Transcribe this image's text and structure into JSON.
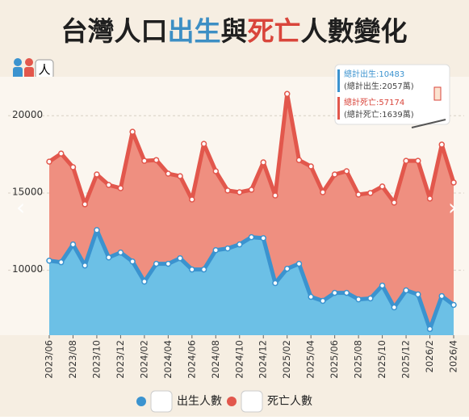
{
  "chart_data": {
    "type": "line",
    "title_parts": [
      {
        "text": "台灣人口",
        "color": "#1f1f1f"
      },
      {
        "text": "出生",
        "color": "#3d8fc4"
      },
      {
        "text": "與",
        "color": "#1f1f1f"
      },
      {
        "text": "死亡",
        "color": "#d9453b"
      },
      {
        "text": "人數變化",
        "color": "#1f1f1f"
      }
    ],
    "y_unit": "人",
    "categories": [
      "2023/06",
      null,
      "2023/08",
      null,
      "2023/10",
      null,
      "2023/12",
      null,
      "2024/02",
      null,
      "2024/04",
      null,
      "2024/06",
      null,
      "2024/08",
      null,
      "2024/10",
      null,
      "2024/12",
      null,
      "2025/02",
      null,
      "2025/04",
      null,
      "2025/06",
      null,
      "2025/08",
      null,
      "2025/10",
      null,
      "2025/12",
      null,
      "2026/2",
      null,
      "2026/4"
    ],
    "series": [
      {
        "name": "死亡人數",
        "color": "#e2574c",
        "fill": "#ef8f80",
        "values": [
          17030,
          17550,
          16670,
          14270,
          16200,
          15520,
          15310,
          18960,
          17080,
          17130,
          16250,
          16090,
          14580,
          18180,
          16410,
          15160,
          15050,
          15210,
          16980,
          14840,
          21410,
          17130,
          16720,
          15050,
          16200,
          16410,
          14900,
          15000,
          15420,
          14380,
          17080,
          17080,
          14640,
          18130,
          15680
        ]
      },
      {
        "name": "出生人數",
        "color": "#3b93cf",
        "fill": "#6cc0e6",
        "values": [
          10620,
          10520,
          11670,
          10310,
          12600,
          10830,
          11150,
          10570,
          9270,
          10420,
          10420,
          10780,
          10050,
          10050,
          11300,
          11410,
          11670,
          12140,
          12080,
          9170,
          10100,
          10420,
          8280,
          8020,
          8540,
          8540,
          8120,
          8180,
          9010,
          7600,
          8700,
          8440,
          6200,
          8330,
          7760
        ]
      }
    ],
    "ylim": [
      5800,
      22000
    ],
    "yticks": [
      10000,
      15000,
      20000
    ],
    "grid": true,
    "tooltip": {
      "birth_total": "總計出生:10483",
      "birth_cum": "(總計出生:2057萬)",
      "death_total": "總計死亡:57174",
      "death_cum": "(總計死亡:1639萬)"
    }
  }
}
